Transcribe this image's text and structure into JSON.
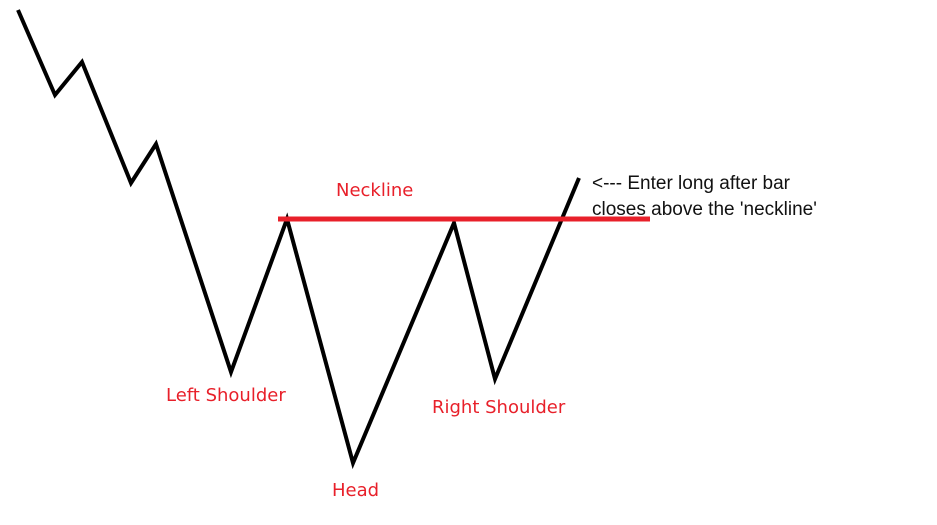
{
  "labels": {
    "neckline": "Neckline",
    "left_shoulder": "Left Shoulder",
    "head": "Head",
    "right_shoulder": "Right Shoulder"
  },
  "note": {
    "line1": "<--- Enter long after bar",
    "line2": "closes above the 'neckline'"
  },
  "colors": {
    "price_line": "#000000",
    "neckline": "#e8202a",
    "labels": "#e8202a",
    "note_text": "#111111"
  }
}
